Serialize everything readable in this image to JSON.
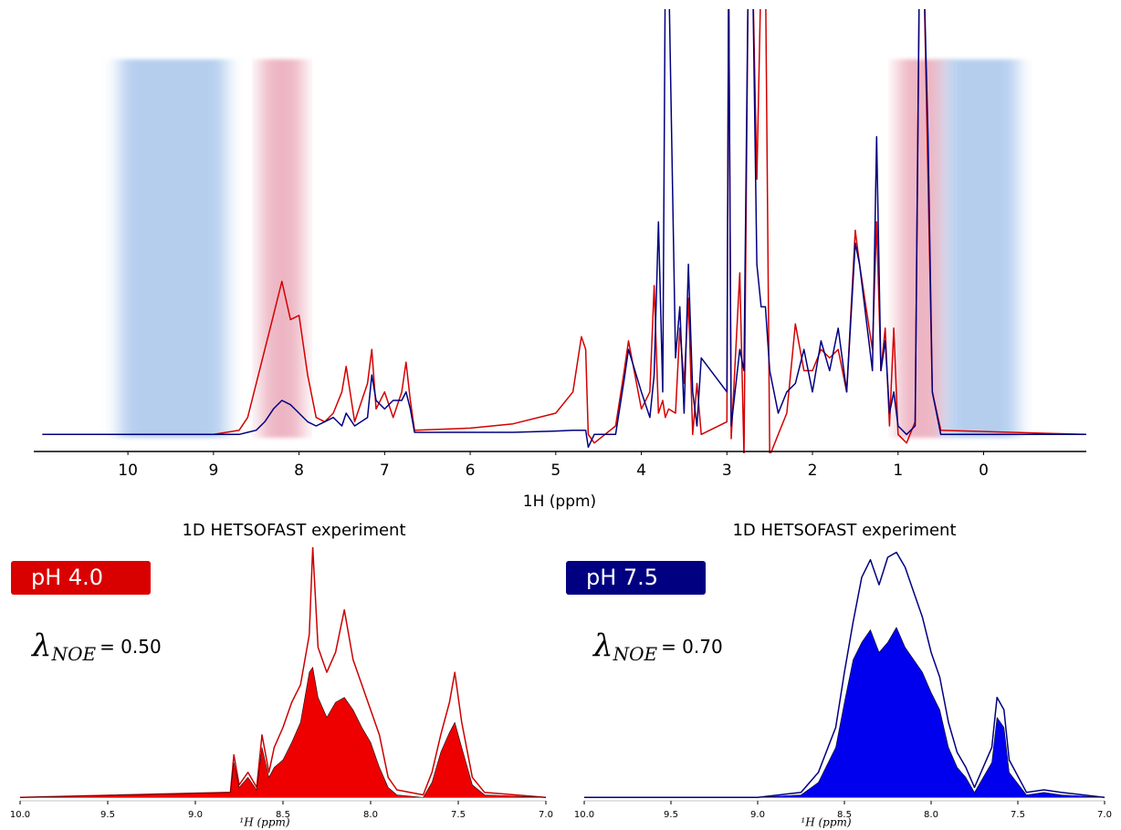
{
  "chart_data": [
    {
      "type": "line",
      "xlabel": "1H (ppm)",
      "xlim": [
        11.1,
        -1.2
      ],
      "ylim": [
        -4,
        100
      ],
      "xticks": [
        10,
        9,
        8,
        7,
        6,
        5,
        4,
        3,
        2,
        1,
        0
      ],
      "bands": [
        {
          "from": 10.1,
          "to": 8.85,
          "color": "#a9c6ec"
        },
        {
          "from": 8.45,
          "to": 7.95,
          "color": "#eaa9b9"
        },
        {
          "from": 1.0,
          "to": 0.45,
          "color": "#eaa9b9"
        },
        {
          "from": 0.45,
          "to": -0.4,
          "color": "#a9c6ec"
        }
      ],
      "x": [
        11.0,
        9.0,
        8.7,
        8.6,
        8.5,
        8.4,
        8.3,
        8.2,
        8.1,
        8.0,
        7.9,
        7.8,
        7.7,
        7.6,
        7.5,
        7.45,
        7.35,
        7.2,
        7.15,
        7.1,
        7.0,
        6.9,
        6.8,
        6.75,
        6.7,
        6.65,
        6.0,
        5.5,
        5.0,
        4.8,
        4.7,
        4.65,
        4.62,
        4.55,
        4.3,
        4.2,
        4.15,
        4.0,
        3.9,
        3.85,
        3.8,
        3.75,
        3.72,
        3.68,
        3.6,
        3.55,
        3.5,
        3.45,
        3.4,
        3.35,
        3.3,
        3.0,
        2.98,
        2.95,
        2.85,
        2.8,
        2.75,
        2.7,
        2.65,
        2.6,
        2.55,
        2.5,
        2.4,
        2.3,
        2.2,
        2.1,
        2.0,
        1.9,
        1.8,
        1.7,
        1.6,
        1.5,
        1.45,
        1.3,
        1.25,
        1.2,
        1.15,
        1.1,
        1.05,
        1.0,
        0.9,
        0.8,
        0.75,
        0.7,
        0.65,
        0.6,
        0.5,
        -1.2
      ],
      "series": [
        {
          "color": "#d40000",
          "values": [
            0,
            0,
            1,
            4,
            12,
            20,
            28,
            36,
            27,
            28,
            14,
            4,
            3,
            5,
            10,
            16,
            3,
            12,
            20,
            6,
            10,
            4,
            10,
            17,
            8,
            1,
            1.5,
            2.5,
            5,
            10,
            23,
            20,
            0,
            -2,
            2,
            15,
            22,
            6,
            10,
            35,
            5,
            8,
            4,
            6,
            5,
            25,
            12,
            32,
            0,
            12,
            0,
            3,
            110,
            -1,
            38,
            -5,
            110,
            110,
            60,
            110,
            110,
            -5,
            0,
            5,
            26,
            15,
            15,
            20,
            18,
            20,
            10,
            48,
            40,
            20,
            50,
            15,
            25,
            2,
            25,
            0,
            -2,
            3,
            110,
            110,
            60,
            10,
            1,
            0
          ]
        },
        {
          "color": "#000080",
          "values": [
            0,
            0,
            0,
            0.5,
            1,
            3,
            6,
            8,
            7,
            5,
            3,
            2,
            3,
            4,
            2,
            5,
            2,
            4,
            14,
            8,
            6,
            8,
            8,
            10,
            6,
            0.5,
            0.5,
            0.5,
            0.8,
            1,
            1,
            1,
            -3,
            0,
            0,
            13,
            20,
            10,
            4,
            14,
            50,
            10,
            110,
            110,
            18,
            30,
            5,
            40,
            10,
            2,
            18,
            10,
            110,
            2,
            20,
            15,
            110,
            110,
            40,
            30,
            30,
            15,
            5,
            10,
            12,
            20,
            10,
            22,
            15,
            25,
            10,
            45,
            40,
            15,
            70,
            15,
            22,
            5,
            10,
            2,
            0,
            2,
            110,
            110,
            70,
            10,
            0,
            0
          ]
        }
      ]
    },
    {
      "type": "line",
      "title": "1D HETSOFAST experiment",
      "label": "pH 4.0",
      "label_color": "#d90000",
      "annotation": {
        "symbol": "λ",
        "subscript": "NOE",
        "text": "= 0.50"
      },
      "xlabel": "¹H (ppm)",
      "xlim": [
        10.0,
        7.0
      ],
      "ylim": [
        -1,
        100
      ],
      "xticks": [
        {
          "value": 10.0,
          "label": "10.0"
        },
        9.5,
        {
          "value": 9.0,
          "label": "9.0"
        },
        8.5,
        {
          "value": 8.0,
          "label": "8.0"
        },
        7.5,
        {
          "value": 7.0,
          "label": "7.0"
        }
      ],
      "x": [
        10.0,
        8.8,
        8.78,
        8.75,
        8.7,
        8.65,
        8.62,
        8.58,
        8.55,
        8.5,
        8.45,
        8.4,
        8.35,
        8.33,
        8.3,
        8.25,
        8.2,
        8.15,
        8.1,
        8.05,
        8.0,
        7.95,
        7.9,
        7.85,
        7.7,
        7.65,
        7.6,
        7.55,
        7.52,
        7.48,
        7.42,
        7.35,
        7.0
      ],
      "series": [
        {
          "color": "#cc0000",
          "fill": false,
          "values": [
            0,
            2,
            17,
            5,
            10,
            4,
            25,
            10,
            20,
            28,
            38,
            45,
            65,
            100,
            60,
            50,
            58,
            75,
            55,
            45,
            35,
            25,
            8,
            3,
            1,
            10,
            25,
            38,
            50,
            30,
            8,
            2,
            0
          ]
        },
        {
          "color": "#ee0000",
          "fill": true,
          "values": [
            0,
            2,
            14,
            4,
            8,
            3,
            20,
            8,
            12,
            15,
            22,
            30,
            50,
            52,
            40,
            32,
            38,
            40,
            35,
            28,
            22,
            12,
            4,
            1,
            0,
            6,
            18,
            26,
            30,
            20,
            5,
            1,
            0
          ]
        }
      ]
    },
    {
      "type": "line",
      "title": "1D HETSOFAST experiment",
      "label": "pH 7.5",
      "label_color": "#000080",
      "annotation": {
        "symbol": "λ",
        "subscript": "NOE",
        "text": "= 0.70"
      },
      "xlabel": "¹H (ppm)",
      "xlim": [
        10.0,
        7.0
      ],
      "ylim": [
        -1,
        100
      ],
      "xticks": [
        {
          "value": 10.0,
          "label": "10.0"
        },
        9.5,
        {
          "value": 9.0,
          "label": "9.0"
        },
        8.5,
        {
          "value": 8.0,
          "label": "8.0"
        },
        7.5,
        {
          "value": 7.0,
          "label": "7.0"
        }
      ],
      "x": [
        10.0,
        9.0,
        8.75,
        8.65,
        8.55,
        8.5,
        8.45,
        8.4,
        8.35,
        8.3,
        8.25,
        8.2,
        8.15,
        8.1,
        8.05,
        8.0,
        7.95,
        7.9,
        7.85,
        7.8,
        7.75,
        7.65,
        7.62,
        7.58,
        7.55,
        7.45,
        7.35,
        7.25,
        7.0
      ],
      "series": [
        {
          "color": "#000080",
          "fill": false,
          "values": [
            0,
            0,
            2,
            10,
            28,
            50,
            70,
            88,
            95,
            85,
            96,
            98,
            92,
            82,
            72,
            58,
            48,
            30,
            18,
            12,
            4,
            20,
            40,
            35,
            15,
            2,
            3,
            2,
            0
          ]
        },
        {
          "color": "#0000ee",
          "fill": true,
          "values": [
            0,
            0,
            1,
            6,
            20,
            38,
            55,
            62,
            67,
            58,
            62,
            68,
            60,
            55,
            50,
            42,
            35,
            20,
            12,
            8,
            2,
            14,
            32,
            28,
            10,
            1,
            2,
            1,
            0
          ]
        }
      ]
    }
  ]
}
